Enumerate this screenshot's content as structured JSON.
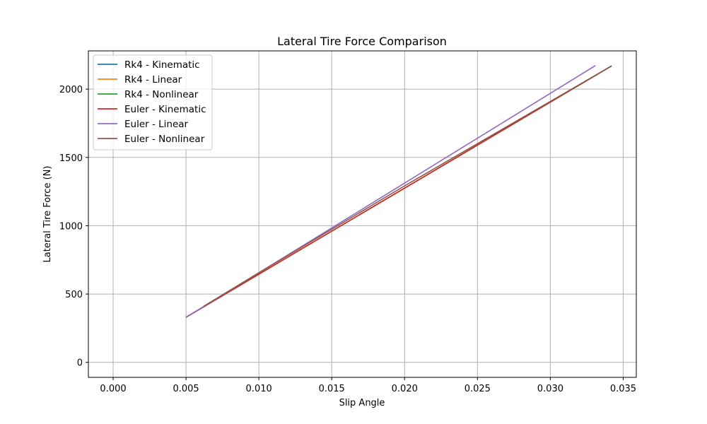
{
  "chart_data": {
    "type": "line",
    "title": "Lateral Tire Force Comparison",
    "xlabel": "Slip Angle",
    "ylabel": "Lateral Tire Force (N)",
    "xlim": [
      -0.0017,
      0.0359
    ],
    "ylim": [
      -110,
      2280
    ],
    "xticks": [
      0.0,
      0.005,
      0.01,
      0.015,
      0.02,
      0.025,
      0.03,
      0.035
    ],
    "xtick_labels": [
      "0.000",
      "0.005",
      "0.010",
      "0.015",
      "0.020",
      "0.025",
      "0.030",
      "0.035"
    ],
    "yticks": [
      0,
      500,
      1000,
      1500,
      2000
    ],
    "ytick_labels": [
      "0",
      "500",
      "1000",
      "1500",
      "2000"
    ],
    "grid": true,
    "legend_position": "top-left",
    "series": [
      {
        "name": "Rk4 - Kinematic",
        "color": "#1f77b4",
        "x": [
          0.005,
          0.0342
        ],
        "y": [
          330,
          2170
        ]
      },
      {
        "name": "Rk4 - Linear",
        "color": "#ff7f0e",
        "x": [
          0.005,
          0.0342
        ],
        "y": [
          330,
          2170
        ]
      },
      {
        "name": "Rk4 - Nonlinear",
        "color": "#2ca02c",
        "x": [
          0.005,
          0.0342
        ],
        "y": [
          330,
          2170
        ]
      },
      {
        "name": "Euler - Kinematic",
        "color": "#d62728",
        "x": [
          0.005,
          0.0342
        ],
        "y": [
          330,
          2170
        ]
      },
      {
        "name": "Euler - Linear",
        "color": "#9467bd",
        "x": [
          0.005,
          0.01,
          0.02,
          0.0331
        ],
        "y": [
          330,
          656,
          1312,
          2173
        ]
      },
      {
        "name": "Euler - Nonlinear",
        "color": "#8c564b",
        "x": [
          0.0062,
          0.01,
          0.02,
          0.0342
        ],
        "y": [
          410,
          656,
          1292,
          2170
        ]
      }
    ]
  }
}
